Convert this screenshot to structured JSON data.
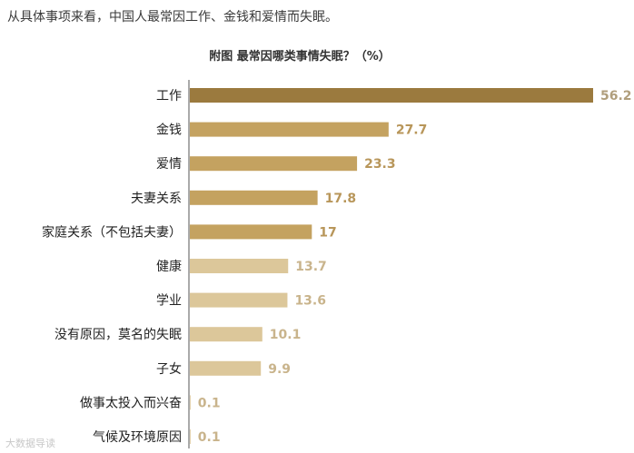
{
  "intro_text": "从具体事项来看，中国人最常因工作、金钱和爱情而失眠。",
  "watermark": "大数据导读",
  "chart_data": {
    "type": "bar",
    "orientation": "horizontal",
    "title": "附图  最常因哪类事情失眠？（%）",
    "categories": [
      "工作",
      "金钱",
      "爱情",
      "夫妻关系",
      "家庭关系（不包括夫妻）",
      "健康",
      "学业",
      "没有原因，莫名的失眠",
      "子女",
      "做事太投入而兴奋",
      "气候及环境原因"
    ],
    "values": [
      56.2,
      27.7,
      23.3,
      17.8,
      17,
      13.7,
      13.6,
      10.1,
      9.9,
      0.1,
      0.1
    ],
    "value_labels": [
      "56.2",
      "27.7",
      "23.3",
      "17.8",
      "17",
      "13.7",
      "13.6",
      "10.1",
      "9.9",
      "0.1",
      "0.1"
    ],
    "bar_colors": [
      "#9b7a3e",
      "#c4a260",
      "#c4a260",
      "#c4a260",
      "#c4a260",
      "#dcc79a",
      "#dcc79a",
      "#dcc79a",
      "#dcc79a",
      "#dcc79a",
      "#dcc79a"
    ],
    "value_label_colors": [
      "#b09e7c",
      "#b8965a",
      "#b8965a",
      "#b8965a",
      "#b8965a",
      "#c9b48c",
      "#c9b48c",
      "#c9b48c",
      "#c9b48c",
      "#c9b48c",
      "#c9b48c"
    ],
    "xlim": [
      0,
      56.2
    ],
    "grid": false,
    "legend": "none",
    "axis_color": "#555555"
  }
}
